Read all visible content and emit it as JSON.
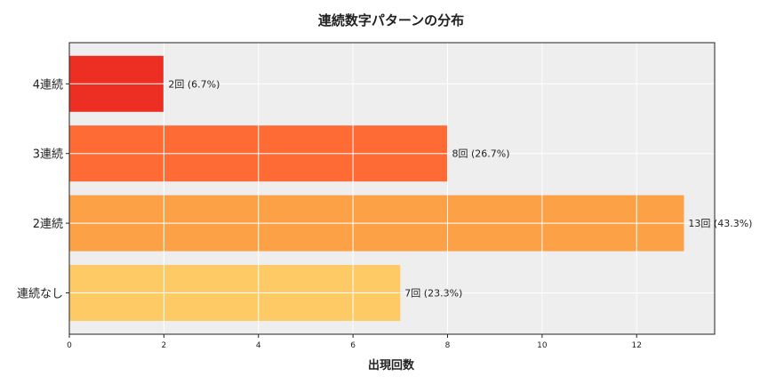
{
  "chart_data": {
    "type": "bar",
    "orientation": "horizontal",
    "title": "連続数字パターンの分布",
    "xlabel": "出現回数",
    "ylabel": "",
    "categories": [
      "連続なし",
      "2連続",
      "3連続",
      "4連続"
    ],
    "values": [
      7,
      13,
      8,
      2
    ],
    "data_labels": [
      "7回 (23.3%)",
      "13回 (43.3%)",
      "8回 (26.7%)",
      "2回 (6.7%)"
    ],
    "colors": [
      "#fdca66",
      "#fda146",
      "#fe6b34",
      "#ed2f23"
    ],
    "xlim": [
      0,
      13.65
    ],
    "xticks": [
      0,
      2,
      4,
      6,
      8,
      10,
      12
    ],
    "grid": true,
    "background": "#eeeeee"
  }
}
